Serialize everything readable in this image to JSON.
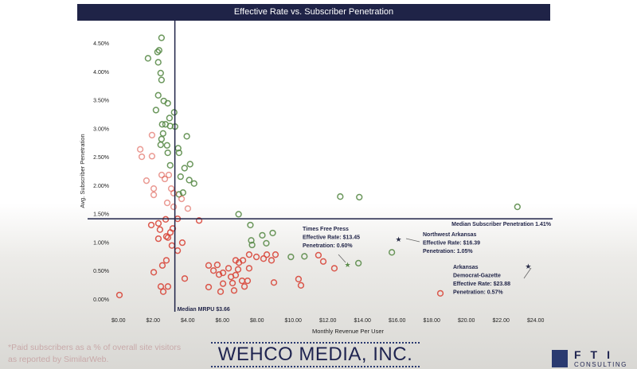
{
  "chart_data": {
    "type": "scatter",
    "title": "Effective Rate vs. Subscriber Penetration",
    "xlabel": "Monthly Revenue Per User",
    "ylabel": "Avg. Subscriber Penetration",
    "xlim": [
      0,
      24
    ],
    "ylim": [
      0,
      4.5
    ],
    "x_ticks": [
      "$0.00",
      "$2.00",
      "$4.00",
      "$6.00",
      "$8.00",
      "$10.00",
      "$12.00",
      "$14.00",
      "$16.00",
      "$18.00",
      "$20.00",
      "$22.00",
      "$24.00"
    ],
    "y_ticks": [
      "0.00%",
      "0.50%",
      "1.00%",
      "1.50%",
      "2.00%",
      "2.50%",
      "3.00%",
      "3.50%",
      "4.00%",
      "4.50%"
    ],
    "grid": false,
    "colors": {
      "above_median": "#5b8c4a",
      "below_median": "#d8473b",
      "lines": "#1f2347",
      "star": "#2b2f4a",
      "star_green": "#5b8c4a"
    },
    "series": [
      {
        "color_key": "above_median",
        "points": [
          [
            2.89,
            4.59
          ],
          [
            2.75,
            4.37
          ],
          [
            2.66,
            4.34
          ],
          [
            2.11,
            4.23
          ],
          [
            2.7,
            4.16
          ],
          [
            2.84,
            3.97
          ],
          [
            2.89,
            3.85
          ],
          [
            2.7,
            3.58
          ],
          [
            3.02,
            3.48
          ],
          [
            3.25,
            3.44
          ],
          [
            2.57,
            3.32
          ],
          [
            3.62,
            3.28
          ],
          [
            3.35,
            3.18
          ],
          [
            2.93,
            3.07
          ],
          [
            3.12,
            3.07
          ],
          [
            3.39,
            3.04
          ],
          [
            3.67,
            3.03
          ],
          [
            2.98,
            2.91
          ],
          [
            4.35,
            2.86
          ],
          [
            2.89,
            2.81
          ],
          [
            2.84,
            2.71
          ],
          [
            3.21,
            2.7
          ],
          [
            3.85,
            2.65
          ],
          [
            3.9,
            2.57
          ],
          [
            3.25,
            2.57
          ],
          [
            4.54,
            2.37
          ],
          [
            3.39,
            2.35
          ],
          [
            4.22,
            2.3
          ],
          [
            3.99,
            2.15
          ],
          [
            4.49,
            2.09
          ],
          [
            4.77,
            2.03
          ],
          [
            4.13,
            1.87
          ],
          [
            3.9,
            1.84
          ],
          [
            7.34,
            1.49
          ],
          [
            8.02,
            1.3
          ],
          [
            8.71,
            1.12
          ],
          [
            9.31,
            1.16
          ],
          [
            8.07,
            1.03
          ],
          [
            8.12,
            0.95
          ],
          [
            8.94,
            0.98
          ],
          [
            10.36,
            0.74
          ],
          [
            11.14,
            0.75
          ],
          [
            14.26,
            0.63
          ],
          [
            13.21,
            1.8
          ],
          [
            14.31,
            1.79
          ],
          [
            23.44,
            1.62
          ],
          [
            16.19,
            0.82
          ]
        ]
      },
      {
        "color_key": "below_median",
        "points": [
          [
            1.66,
            2.63
          ],
          [
            2.34,
            2.88
          ],
          [
            1.75,
            2.5
          ],
          [
            2.34,
            2.51
          ],
          [
            2.9,
            2.18
          ],
          [
            2.02,
            2.08
          ],
          [
            3.08,
            2.11
          ],
          [
            3.31,
            2.18
          ],
          [
            2.44,
            1.94
          ],
          [
            3.45,
            1.94
          ],
          [
            3.59,
            1.62
          ],
          [
            2.44,
            1.83
          ],
          [
            3.22,
            1.69
          ],
          [
            3.59,
            1.86
          ],
          [
            4.05,
            1.76
          ],
          [
            4.41,
            1.59
          ],
          [
            5.06,
            1.38
          ],
          [
            3.13,
            1.4
          ],
          [
            3.82,
            1.41
          ],
          [
            2.8,
            1.22
          ],
          [
            2.71,
            1.33
          ],
          [
            2.3,
            1.3
          ],
          [
            3.54,
            1.24
          ],
          [
            3.4,
            1.17
          ],
          [
            3.17,
            1.1
          ],
          [
            3.26,
            1.08
          ],
          [
            2.71,
            1.06
          ],
          [
            4.09,
            0.99
          ],
          [
            3.49,
            0.94
          ],
          [
            3.82,
            0.85
          ],
          [
            3.17,
            0.68
          ],
          [
            2.94,
            0.59
          ],
          [
            2.44,
            0.47
          ],
          [
            4.23,
            0.36
          ],
          [
            2.85,
            0.22
          ],
          [
            3.26,
            0.22
          ],
          [
            2.99,
            0.13
          ],
          [
            0.46,
            0.07
          ],
          [
            5.61,
            0.59
          ],
          [
            6.11,
            0.6
          ],
          [
            5.89,
            0.5
          ],
          [
            6.21,
            0.43
          ],
          [
            6.44,
            0.46
          ],
          [
            6.76,
            0.54
          ],
          [
            6.9,
            0.39
          ],
          [
            6.99,
            0.28
          ],
          [
            7.17,
            0.68
          ],
          [
            7.36,
            0.64
          ],
          [
            7.31,
            0.52
          ],
          [
            7.54,
            0.32
          ],
          [
            7.17,
            0.42
          ],
          [
            7.86,
            0.32
          ],
          [
            7.68,
            0.22
          ],
          [
            7.95,
            0.54
          ],
          [
            7.08,
            0.15
          ],
          [
            6.44,
            0.27
          ],
          [
            6.3,
            0.13
          ],
          [
            5.61,
            0.21
          ],
          [
            7.59,
            0.68
          ],
          [
            7.95,
            0.78
          ],
          [
            8.37,
            0.74
          ],
          [
            8.78,
            0.71
          ],
          [
            9.24,
            0.68
          ],
          [
            9.47,
            0.78
          ],
          [
            8.97,
            0.78
          ],
          [
            10.94,
            0.24
          ],
          [
            10.8,
            0.35
          ],
          [
            9.38,
            0.29
          ],
          [
            11.95,
            0.77
          ],
          [
            12.23,
            0.66
          ],
          [
            12.87,
            0.54
          ],
          [
            18.99,
            0.1
          ]
        ]
      }
    ],
    "reference_lines": {
      "vertical": {
        "value": 3.66,
        "label": "Median MRPU $3.66"
      },
      "horizontal": {
        "value": 1.41,
        "label": "Median Subscriber Penetration 1.41%"
      }
    },
    "annotations": [
      {
        "x": 13.45,
        "y": 0.6,
        "star_color": "star_green",
        "lines": [
          "Times Free Press",
          "Effective Rate: $13.45",
          "Penetration: 0.60%"
        ]
      },
      {
        "x": 16.39,
        "y": 1.05,
        "star_color": "star",
        "lines": [
          "Northwest Arkansas",
          "Effective Rate: $16.39",
          "Penetration: 1.05%"
        ]
      },
      {
        "x": 23.88,
        "y": 0.57,
        "star_color": "star",
        "lines": [
          "Arkansas",
          "Democrat-Gazette",
          "Effective Rate: $23.88",
          "Penetration: 0.57%"
        ]
      }
    ]
  },
  "footer": {
    "note_line1": "*Paid subscribers as a % of overall site visitors",
    "note_line2": "as reported by SimilarWeb.",
    "company": "WEHCO MEDIA, INC.",
    "logo_letters": "FTI",
    "logo_sub": "CONSULTING"
  }
}
